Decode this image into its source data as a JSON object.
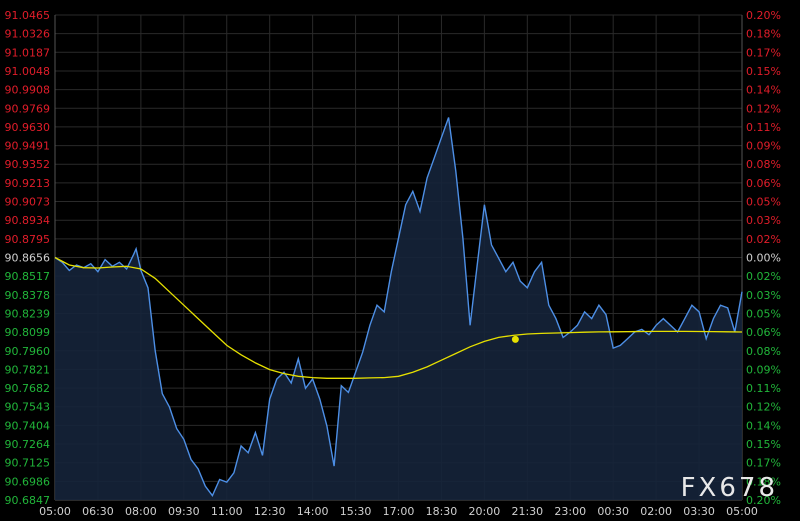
{
  "colors": {
    "background": "#000000",
    "grid": "#2a2a2a",
    "price_line": "#4d8fe6",
    "area_fill": "#15233a",
    "average_line": "#e6e000",
    "positive_text": "#e11d2a",
    "negative_text": "#21b63a",
    "neutral_text": "#d0d0d0"
  },
  "watermark": "FX678",
  "chart_data": {
    "type": "line",
    "x_tick_labels": [
      "05:00",
      "06:30",
      "08:00",
      "09:30",
      "11:00",
      "12:30",
      "14:00",
      "15:30",
      "17:00",
      "18:30",
      "20:00",
      "21:30",
      "23:00",
      "00:30",
      "02:00",
      "03:30",
      "05:00"
    ],
    "xlim": [
      0,
      1440
    ],
    "y_left_ticks": [
      "91.0465",
      "91.0326",
      "91.0187",
      "91.0048",
      "90.9908",
      "90.9769",
      "90.9630",
      "90.9491",
      "90.9352",
      "90.9213",
      "90.9073",
      "90.8934",
      "90.8795",
      "90.8656",
      "90.8517",
      "90.8378",
      "90.8239",
      "90.8099",
      "90.7960",
      "90.7821",
      "90.7682",
      "90.7543",
      "90.7404",
      "90.7264",
      "90.7125",
      "90.6986",
      "90.6847"
    ],
    "y_right_ticks": [
      "0.20%",
      "0.18%",
      "0.17%",
      "0.15%",
      "0.14%",
      "0.12%",
      "0.11%",
      "0.09%",
      "0.08%",
      "0.06%",
      "0.05%",
      "0.03%",
      "0.02%",
      "0.00%",
      "0.02%",
      "0.03%",
      "0.05%",
      "0.06%",
      "0.08%",
      "0.09%",
      "0.11%",
      "0.12%",
      "0.14%",
      "0.15%",
      "0.17%",
      "0.18%",
      "0.20%"
    ],
    "ylim": [
      90.6847,
      91.0465
    ],
    "reference_value": 90.8656,
    "grid": true,
    "series": [
      {
        "type": "area-line",
        "x": [
          0,
          15,
          30,
          45,
          60,
          75,
          90,
          105,
          120,
          135,
          150,
          165,
          170,
          180,
          195,
          210,
          225,
          240,
          255,
          270,
          285,
          300,
          315,
          330,
          345,
          360,
          375,
          390,
          405,
          420,
          435,
          450,
          465,
          480,
          495,
          510,
          525,
          540,
          555,
          570,
          585,
          600,
          615,
          630,
          645,
          660,
          675,
          690,
          705,
          720,
          735,
          750,
          765,
          780,
          795,
          810,
          825,
          840,
          855,
          870,
          885,
          900,
          915,
          930,
          945,
          960,
          975,
          990,
          1005,
          1020,
          1035,
          1050,
          1065,
          1080,
          1095,
          1110,
          1125,
          1140,
          1155,
          1170,
          1185,
          1200,
          1215,
          1230,
          1245,
          1260,
          1275,
          1290,
          1305,
          1320,
          1335,
          1350,
          1365,
          1380,
          1395,
          1410,
          1425,
          1440
        ],
        "y": [
          90.8656,
          90.862,
          90.856,
          90.86,
          90.858,
          90.861,
          90.855,
          90.864,
          90.859,
          90.862,
          90.857,
          90.868,
          90.872,
          90.856,
          90.843,
          90.796,
          90.764,
          90.754,
          90.738,
          90.73,
          90.715,
          90.708,
          90.695,
          90.688,
          90.7,
          90.698,
          90.705,
          90.725,
          90.72,
          90.735,
          90.718,
          90.76,
          90.775,
          90.78,
          90.772,
          90.79,
          90.768,
          90.775,
          90.76,
          90.74,
          90.71,
          90.77,
          90.765,
          90.78,
          90.795,
          90.815,
          90.83,
          90.825,
          90.855,
          90.88,
          90.905,
          90.915,
          90.9,
          90.925,
          90.94,
          90.955,
          90.97,
          90.93,
          90.88,
          90.815,
          90.86,
          90.905,
          90.875,
          90.865,
          90.855,
          90.862,
          90.848,
          90.843,
          90.855,
          90.862,
          90.83,
          90.82,
          90.806,
          90.81,
          90.815,
          90.825,
          90.82,
          90.83,
          90.823,
          90.798,
          90.8,
          90.805,
          90.81,
          90.812,
          90.808,
          90.815,
          90.82,
          90.815,
          90.81,
          90.82,
          90.83,
          90.825,
          90.805,
          90.82,
          90.83,
          90.828,
          90.81,
          90.84
        ]
      },
      {
        "type": "line",
        "x": [
          0,
          30,
          60,
          90,
          120,
          150,
          180,
          210,
          240,
          270,
          300,
          330,
          360,
          390,
          420,
          450,
          480,
          510,
          540,
          570,
          600,
          630,
          660,
          690,
          720,
          750,
          780,
          810,
          840,
          870,
          900,
          930,
          960,
          990,
          1020,
          1050,
          1080,
          1110,
          1140,
          1170,
          1200,
          1230,
          1260,
          1290,
          1320,
          1350,
          1380,
          1410,
          1440
        ],
        "y": [
          90.8656,
          90.86,
          90.858,
          90.8578,
          90.8585,
          90.859,
          90.857,
          90.85,
          90.84,
          90.83,
          90.82,
          90.81,
          90.8,
          90.793,
          90.787,
          90.782,
          90.779,
          90.777,
          90.776,
          90.7755,
          90.7755,
          90.7755,
          90.7758,
          90.776,
          90.777,
          90.78,
          90.784,
          90.789,
          90.794,
          90.799,
          90.803,
          90.806,
          90.8075,
          90.8085,
          90.809,
          90.8093,
          90.8096,
          90.8099,
          90.8101,
          90.8102,
          90.8103,
          90.8104,
          90.8105,
          90.8105,
          90.8105,
          90.8104,
          90.8103,
          90.8102,
          90.81
        ],
        "markers": [
          {
            "x": 965,
            "y": 90.8045
          }
        ]
      }
    ]
  }
}
